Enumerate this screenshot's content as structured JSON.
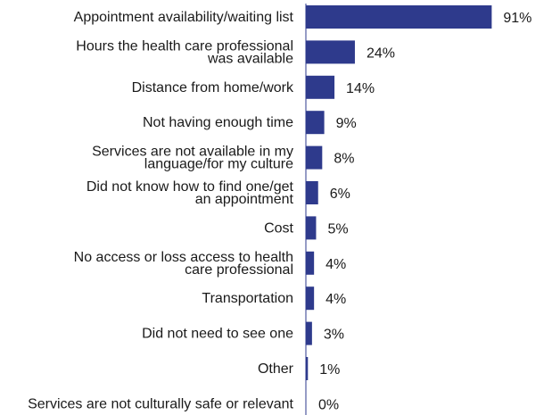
{
  "chart_data": {
    "type": "bar",
    "orientation": "horizontal",
    "categories": [
      [
        "Appointment availability/waiting list"
      ],
      [
        "Hours the health care professional",
        "was available"
      ],
      [
        "Distance from home/work"
      ],
      [
        "Not having enough time"
      ],
      [
        "Services are not available in my",
        "language/for my culture"
      ],
      [
        "Did not know how to find one/get",
        "an appointment"
      ],
      [
        "Cost"
      ],
      [
        "No access or loss access to health",
        "care professional"
      ],
      [
        "Transportation"
      ],
      [
        "Did not need to see one"
      ],
      [
        "Other"
      ],
      [
        "Services are not culturally safe or relevant"
      ]
    ],
    "values": [
      91,
      24,
      14,
      9,
      8,
      6,
      5,
      4,
      4,
      3,
      1,
      0
    ],
    "value_labels": [
      "91%",
      "24%",
      "14%",
      "9%",
      "8%",
      "6%",
      "5%",
      "4%",
      "4%",
      "3%",
      "1%",
      "0%"
    ],
    "bar_color": "#2e3a8c",
    "axis_color": "#2e3a8c",
    "xlim": [
      0,
      100
    ],
    "grid": false,
    "legend": false
  }
}
